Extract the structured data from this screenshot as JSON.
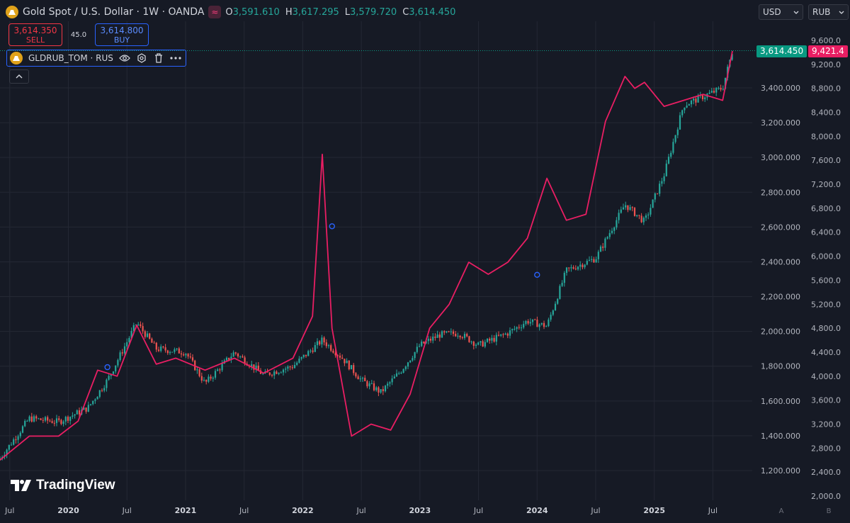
{
  "header": {
    "symbol_title": "Gold Spot / U.S. Dollar · 1W · OANDA",
    "ohlc": [
      {
        "key": "O",
        "value": "3,591.610"
      },
      {
        "key": "H",
        "value": "3,617.295"
      },
      {
        "key": "L",
        "value": "3,579.720"
      },
      {
        "key": "C",
        "value": "3,614.450"
      }
    ]
  },
  "trade": {
    "sell_price": "3,614.350",
    "sell_label": "SELL",
    "spread": "45.0",
    "buy_price": "3,614.800",
    "buy_label": "BUY"
  },
  "study": {
    "label": "GLDRUB_TOM · RUS"
  },
  "currency_selects": {
    "left": "USD",
    "right": "RUB"
  },
  "price_tags": {
    "left": "3,614.450",
    "right": "9,421.4"
  },
  "left_axis_ticks": [
    "1,200.000",
    "1,400.000",
    "1,600.000",
    "1,800.000",
    "2,000.000",
    "2,200.000",
    "2,400.000",
    "2,600.000",
    "2,800.000",
    "3,000.000",
    "3,200.000",
    "3,400.000"
  ],
  "right_axis_ticks": [
    "2,000.0",
    "2,400.0",
    "2,800.0",
    "3,200.0",
    "3,600.0",
    "4,000.0",
    "4,400.0",
    "4,800.0",
    "5,200.0",
    "5,600.0",
    "6,000.0",
    "6,400.0",
    "6,800.0",
    "7,200.0",
    "7,600.0",
    "8,000.0",
    "8,400.0",
    "8,800.0",
    "9,200.0",
    "9,600.0"
  ],
  "x_axis_ticks": [
    "Jul",
    "2020",
    "Jul",
    "2021",
    "Jul",
    "2022",
    "Jul",
    "2023",
    "Jul",
    "2024",
    "Jul",
    "2025",
    "Jul"
  ],
  "axis_buttons": {
    "a": "A",
    "b": "B"
  },
  "logo_text": "TradingView",
  "colors": {
    "background": "#161a25",
    "up": "#26a69a",
    "down": "#ef5350",
    "overlay": "#e91e63",
    "marker": "#2962ff",
    "price_tag_left": "#089981",
    "price_tag_right": "#e91e63"
  },
  "chart_data": {
    "type": "line",
    "x_range": [
      "2019-06",
      "2025-09"
    ],
    "series": [
      {
        "name": "Gold Spot / U.S. Dollar",
        "render": "candlestick",
        "axis": "left",
        "x": [
          "2019-06",
          "2019-09",
          "2019-12",
          "2020-03",
          "2020-05",
          "2020-08",
          "2020-10",
          "2021-01",
          "2021-03",
          "2021-06",
          "2021-09",
          "2021-12",
          "2022-03",
          "2022-05",
          "2022-07",
          "2022-09",
          "2022-11",
          "2023-01",
          "2023-03",
          "2023-05",
          "2023-07",
          "2023-10",
          "2023-12",
          "2024-02",
          "2024-04",
          "2024-07",
          "2024-10",
          "2024-12",
          "2025-02",
          "2025-04",
          "2025-06",
          "2025-08",
          "2025-09"
        ],
        "values": [
          1270,
          1500,
          1480,
          1560,
          1720,
          2050,
          1900,
          1880,
          1700,
          1880,
          1750,
          1800,
          1950,
          1850,
          1720,
          1650,
          1770,
          1920,
          1980,
          1990,
          1920,
          1990,
          2060,
          2030,
          2350,
          2420,
          2730,
          2630,
          2900,
          3300,
          3350,
          3400,
          3614
        ]
      },
      {
        "name": "GLDRUB_TOM · RUS",
        "render": "line",
        "axis": "right",
        "x": [
          "2019-06",
          "2019-09",
          "2019-12",
          "2020-02",
          "2020-04",
          "2020-06",
          "2020-08",
          "2020-10",
          "2020-12",
          "2021-03",
          "2021-06",
          "2021-09",
          "2021-12",
          "2022-02",
          "2022-03",
          "2022-04",
          "2022-06",
          "2022-08",
          "2022-10",
          "2022-12",
          "2023-02",
          "2023-04",
          "2023-06",
          "2023-08",
          "2023-10",
          "2023-12",
          "2024-02",
          "2024-04",
          "2024-06",
          "2024-08",
          "2024-10",
          "2024-11",
          "2024-12",
          "2025-02",
          "2025-04",
          "2025-06",
          "2025-08",
          "2025-09"
        ],
        "values": [
          2600,
          3000,
          3000,
          3250,
          4100,
          4000,
          4850,
          4200,
          4300,
          4100,
          4300,
          4050,
          4300,
          5000,
          7700,
          4800,
          3000,
          3200,
          3100,
          3700,
          4800,
          5200,
          5900,
          5700,
          5900,
          6300,
          7300,
          6600,
          6700,
          8250,
          9000,
          8800,
          8900,
          8500,
          8600,
          8700,
          8600,
          9421
        ]
      }
    ],
    "left_axis": {
      "range": [
        1200,
        3450
      ]
    },
    "right_axis": {
      "range": [
        2000,
        9700
      ]
    },
    "markers": [
      {
        "series": "GLDRUB_TOM · RUS",
        "x": "2020-05",
        "value": 4150
      },
      {
        "series": "GLDRUB_TOM · RUS",
        "x": "2022-04",
        "value": 6500
      },
      {
        "series": "GLDRUB_TOM · RUS",
        "x": "2024-01",
        "value": 5690
      }
    ],
    "grid": true,
    "legend": "top-left"
  }
}
